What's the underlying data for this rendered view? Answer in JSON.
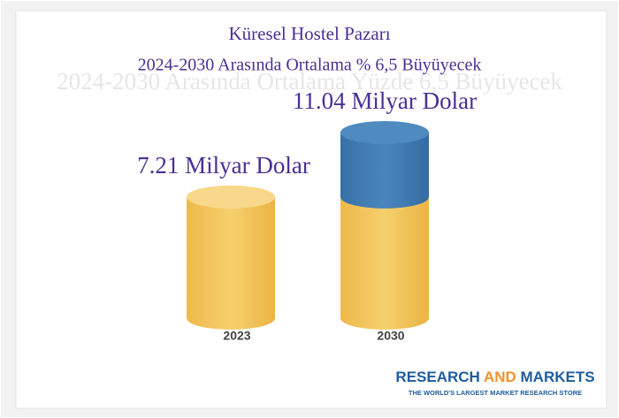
{
  "chart_data": {
    "type": "cylinder",
    "title": "Küresel Hostel Pazarı",
    "subtitle": "2024-2030 Arasında Ortalama % 6,5 Büyüyecek",
    "background_subtitle": "2024-2030 Arasında Ortalama Yüzde 6,5 Büyüyecek",
    "categories": [
      "2023",
      "2030"
    ],
    "values": [
      7.21,
      11.04
    ],
    "value_labels": [
      "7.21 Milyar Dolar",
      "11.04 Milyar Dolar"
    ],
    "colors": [
      "#f2c45a",
      "#3f78ad"
    ],
    "source": {
      "name": [
        "RESEARCH",
        "AND",
        "MARKETS"
      ],
      "tagline": "THE WORLD'S LARGEST MARKET RESEARCH STORE"
    }
  }
}
